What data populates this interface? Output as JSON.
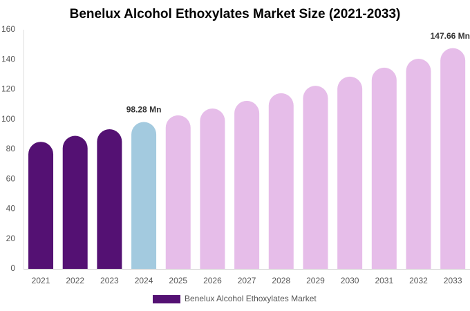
{
  "chart_data": {
    "type": "bar",
    "title": "Benelux Alcohol Ethoxylates Market Size (2021-2033)",
    "categories": [
      "2021",
      "2022",
      "2023",
      "2024",
      "2025",
      "2026",
      "2027",
      "2028",
      "2029",
      "2030",
      "2031",
      "2032",
      "2033"
    ],
    "series": [
      {
        "name": "Benelux Alcohol Ethoxylates Market",
        "color": "#541173",
        "values": [
          85,
          89,
          93.4,
          98.28,
          102.7,
          107.3,
          112.4,
          117.5,
          122.5,
          128.6,
          134.6,
          140.6,
          147.66
        ],
        "value_labels": [
          null,
          null,
          null,
          "98.28 Mn",
          null,
          null,
          null,
          null,
          null,
          null,
          null,
          null,
          "147.66 Mn"
        ],
        "colors": [
          "#541173",
          "#541173",
          "#541173",
          "#a3cadf",
          "#e6bde9",
          "#e6bde9",
          "#e6bde9",
          "#e6bde9",
          "#e6bde9",
          "#e6bde9",
          "#e6bde9",
          "#e6bde9",
          "#e6bde9"
        ]
      }
    ],
    "ylim": [
      0,
      160
    ],
    "yticks": [
      0,
      20,
      40,
      60,
      80,
      100,
      120,
      140,
      160
    ],
    "grid": false
  }
}
